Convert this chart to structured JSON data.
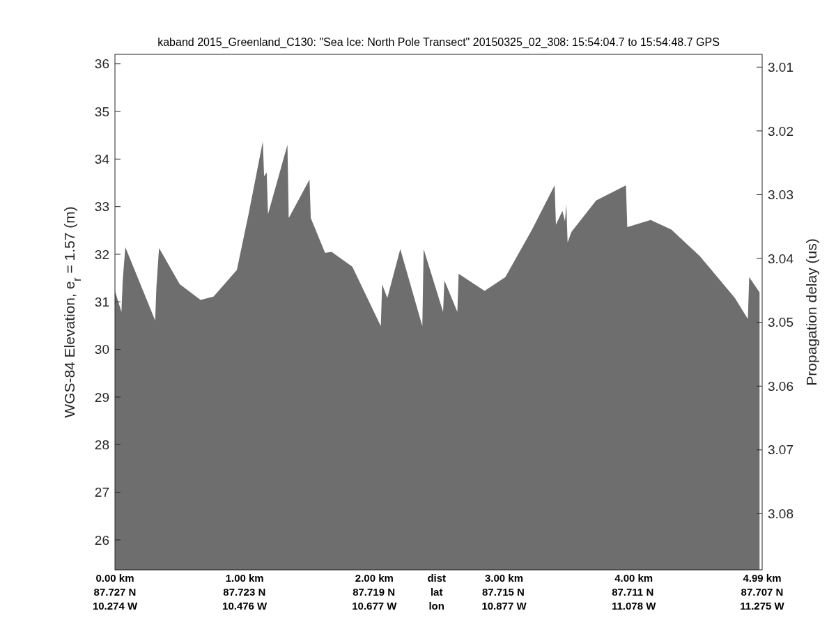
{
  "chart_data": {
    "type": "area",
    "title": "kaband 2015_Greenland_C130: \"Sea Ice: North Pole Transect\"  20150325_02_308: 15:54:04.7 to 15:54:48.7 GPS",
    "ylabel": "WGS-84 Elevation, e$_{r}$ = 1.57 (m)",
    "y2label": "Propagation delay (us)",
    "x": [
      0.0,
      0.05,
      0.06,
      0.08,
      0.31,
      0.32,
      0.34,
      0.5,
      0.66,
      0.76,
      0.94,
      1.03,
      1.14,
      1.15,
      1.17,
      1.18,
      1.33,
      1.34,
      1.5,
      1.51,
      1.62,
      1.67,
      1.83,
      2.05,
      2.06,
      2.1,
      2.2,
      2.37,
      2.38,
      2.53,
      2.54,
      2.64,
      2.65,
      2.85,
      3.01,
      3.22,
      3.39,
      3.4,
      3.45,
      3.47,
      3.48,
      3.49,
      3.52,
      3.71,
      3.94,
      3.95,
      4.13,
      4.29,
      4.51,
      4.78,
      4.88,
      4.89,
      4.97
    ],
    "series": [
      {
        "color": "#6e6e6e",
        "values": [
          31.23,
          30.79,
          31.45,
          32.15,
          30.61,
          31.33,
          32.13,
          31.37,
          31.04,
          31.11,
          31.67,
          32.84,
          34.37,
          33.64,
          33.72,
          32.84,
          34.3,
          32.76,
          33.57,
          32.76,
          32.03,
          32.05,
          31.74,
          30.49,
          31.37,
          31.08,
          32.11,
          30.49,
          32.11,
          30.79,
          31.45,
          30.79,
          31.59,
          31.23,
          31.52,
          32.54,
          33.45,
          32.62,
          32.91,
          32.69,
          33.06,
          32.25,
          32.47,
          33.13,
          33.45,
          32.57,
          32.72,
          32.52,
          31.96,
          31.08,
          30.64,
          31.52,
          31.2
        ]
      }
    ],
    "xlim": [
      0,
      4.99
    ],
    "xticks": [
      {
        "value": 0,
        "label": "0.00 km"
      },
      {
        "value": 1,
        "label": "1.00 km"
      },
      {
        "value": 2,
        "label": "2.00 km"
      },
      {
        "value": 3,
        "label": "3.00 km"
      },
      {
        "value": 4,
        "label": "4.00 km"
      },
      {
        "value": 4.99,
        "label": "4.99 km"
      }
    ],
    "x2lim": [
      87.727,
      87.707
    ],
    "x2ticks": [
      {
        "value": 87.727,
        "label": "87.727 N"
      },
      {
        "value": 87.723,
        "label": "87.723 N"
      },
      {
        "value": 87.719,
        "label": "87.719 N"
      },
      {
        "value": 87.715,
        "label": "87.715 N"
      },
      {
        "value": 87.711,
        "label": "87.711 N"
      },
      {
        "value": 87.707,
        "label": "87.707 N"
      }
    ],
    "annotations": [
      "dist",
      "lat",
      "lon",
      "10.274 W",
      "10.476 W",
      "10.677 W",
      "10.877 W",
      "11.078 W",
      "11.275 W"
    ],
    "ylim": [
      25.37,
      36.2
    ],
    "yticks": [
      26,
      27,
      28,
      29,
      30,
      31,
      32,
      33,
      34,
      35,
      36
    ],
    "y2lim": [
      3.0888,
      3.008
    ],
    "y2ticks": [
      3.01,
      3.02,
      3.03,
      3.04,
      3.05,
      3.06,
      3.07,
      3.08
    ],
    "grid": false
  }
}
